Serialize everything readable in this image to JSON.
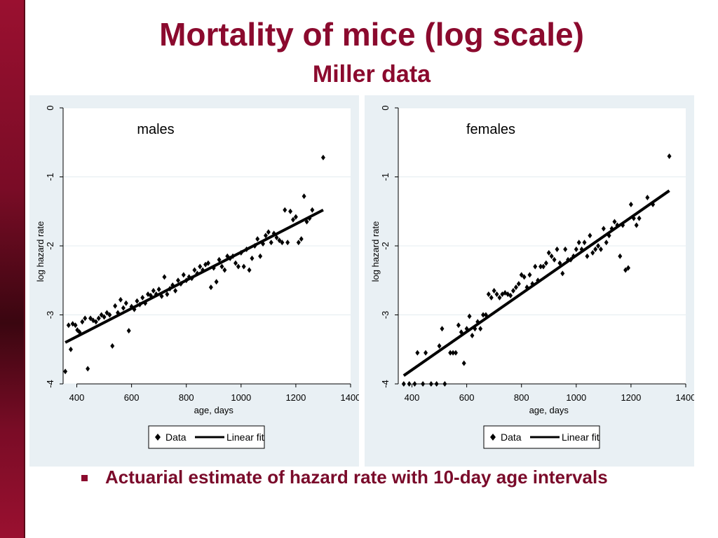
{
  "title": "Mortality of mice (log scale)",
  "subtitle": "Miller data",
  "bullet": "Actuarial estimate of hazard rate with 10-day age intervals",
  "colors": {
    "title": "#8b0a2e",
    "accent_bar": "#8b0a2e",
    "panel_bg": "#e9f0f4"
  },
  "chart_data": [
    {
      "type": "scatter",
      "annotation": "males",
      "xlabel": "age, days",
      "ylabel": "log hazard rate",
      "xlim": [
        350,
        1400
      ],
      "ylim": [
        -4,
        0
      ],
      "xticks": [
        400,
        600,
        800,
        1000,
        1200,
        1400
      ],
      "yticks": [
        0,
        -1,
        -2,
        -3,
        -4
      ],
      "grid": true,
      "legend": {
        "placement": "bottom",
        "entries": [
          "Data",
          "Linear fit"
        ]
      },
      "series": [
        {
          "name": "Data",
          "kind": "scatter",
          "points": [
            [
              358,
              -3.82
            ],
            [
              370,
              -3.15
            ],
            [
              378,
              -3.5
            ],
            [
              385,
              -3.13
            ],
            [
              395,
              -3.15
            ],
            [
              402,
              -3.22
            ],
            [
              410,
              -3.25
            ],
            [
              420,
              -3.1
            ],
            [
              430,
              -3.05
            ],
            [
              440,
              -3.78
            ],
            [
              450,
              -3.05
            ],
            [
              460,
              -3.08
            ],
            [
              470,
              -3.1
            ],
            [
              480,
              -3.05
            ],
            [
              490,
              -3.0
            ],
            [
              500,
              -3.03
            ],
            [
              510,
              -2.97
            ],
            [
              520,
              -3.0
            ],
            [
              530,
              -3.45
            ],
            [
              540,
              -2.87
            ],
            [
              550,
              -2.97
            ],
            [
              560,
              -2.78
            ],
            [
              570,
              -2.9
            ],
            [
              580,
              -2.83
            ],
            [
              590,
              -3.23
            ],
            [
              600,
              -2.88
            ],
            [
              610,
              -2.92
            ],
            [
              620,
              -2.8
            ],
            [
              630,
              -2.85
            ],
            [
              640,
              -2.75
            ],
            [
              650,
              -2.83
            ],
            [
              660,
              -2.7
            ],
            [
              670,
              -2.72
            ],
            [
              680,
              -2.65
            ],
            [
              690,
              -2.7
            ],
            [
              700,
              -2.63
            ],
            [
              710,
              -2.73
            ],
            [
              720,
              -2.45
            ],
            [
              730,
              -2.7
            ],
            [
              740,
              -2.62
            ],
            [
              750,
              -2.57
            ],
            [
              760,
              -2.65
            ],
            [
              770,
              -2.5
            ],
            [
              780,
              -2.55
            ],
            [
              790,
              -2.42
            ],
            [
              800,
              -2.5
            ],
            [
              810,
              -2.45
            ],
            [
              820,
              -2.47
            ],
            [
              830,
              -2.35
            ],
            [
              840,
              -2.4
            ],
            [
              850,
              -2.3
            ],
            [
              860,
              -2.35
            ],
            [
              870,
              -2.27
            ],
            [
              880,
              -2.25
            ],
            [
              890,
              -2.6
            ],
            [
              900,
              -2.32
            ],
            [
              910,
              -2.52
            ],
            [
              920,
              -2.2
            ],
            [
              930,
              -2.3
            ],
            [
              940,
              -2.35
            ],
            [
              950,
              -2.15
            ],
            [
              960,
              -2.18
            ],
            [
              970,
              -2.15
            ],
            [
              980,
              -2.25
            ],
            [
              990,
              -2.3
            ],
            [
              1000,
              -2.1
            ],
            [
              1010,
              -2.3
            ],
            [
              1020,
              -2.05
            ],
            [
              1030,
              -2.35
            ],
            [
              1040,
              -2.18
            ],
            [
              1050,
              -2.0
            ],
            [
              1060,
              -1.9
            ],
            [
              1070,
              -2.15
            ],
            [
              1080,
              -1.97
            ],
            [
              1090,
              -1.85
            ],
            [
              1100,
              -1.8
            ],
            [
              1110,
              -1.95
            ],
            [
              1120,
              -1.82
            ],
            [
              1130,
              -1.88
            ],
            [
              1140,
              -1.92
            ],
            [
              1150,
              -1.95
            ],
            [
              1160,
              -1.48
            ],
            [
              1170,
              -1.95
            ],
            [
              1180,
              -1.5
            ],
            [
              1190,
              -1.62
            ],
            [
              1200,
              -1.58
            ],
            [
              1210,
              -1.95
            ],
            [
              1220,
              -1.9
            ],
            [
              1230,
              -1.28
            ],
            [
              1240,
              -1.65
            ],
            [
              1250,
              -1.6
            ],
            [
              1260,
              -1.48
            ],
            [
              1300,
              -0.72
            ]
          ]
        },
        {
          "name": "Linear fit",
          "kind": "line",
          "points": [
            [
              358,
              -3.4
            ],
            [
              1300,
              -1.48
            ]
          ]
        }
      ]
    },
    {
      "type": "scatter",
      "annotation": "females",
      "xlabel": "age, days",
      "ylabel": "log hazard rate",
      "xlim": [
        350,
        1400
      ],
      "ylim": [
        -4,
        0
      ],
      "xticks": [
        400,
        600,
        800,
        1000,
        1200,
        1400
      ],
      "yticks": [
        0,
        -1,
        -2,
        -3,
        -4
      ],
      "grid": true,
      "legend": {
        "placement": "bottom",
        "entries": [
          "Data",
          "Linear fit"
        ]
      },
      "series": [
        {
          "name": "Data",
          "kind": "scatter",
          "points": [
            [
              370,
              -4.0
            ],
            [
              390,
              -4.0
            ],
            [
              410,
              -4.0
            ],
            [
              420,
              -3.55
            ],
            [
              440,
              -4.0
            ],
            [
              450,
              -3.55
            ],
            [
              470,
              -4.0
            ],
            [
              490,
              -4.0
            ],
            [
              500,
              -3.45
            ],
            [
              510,
              -3.2
            ],
            [
              520,
              -4.0
            ],
            [
              540,
              -3.55
            ],
            [
              550,
              -3.55
            ],
            [
              560,
              -3.55
            ],
            [
              570,
              -3.15
            ],
            [
              580,
              -3.25
            ],
            [
              590,
              -3.7
            ],
            [
              600,
              -3.2
            ],
            [
              610,
              -3.02
            ],
            [
              620,
              -3.3
            ],
            [
              630,
              -3.2
            ],
            [
              640,
              -3.1
            ],
            [
              650,
              -3.2
            ],
            [
              660,
              -3.0
            ],
            [
              670,
              -3.0
            ],
            [
              680,
              -2.7
            ],
            [
              690,
              -2.75
            ],
            [
              700,
              -2.65
            ],
            [
              710,
              -2.7
            ],
            [
              720,
              -2.75
            ],
            [
              730,
              -2.7
            ],
            [
              740,
              -2.68
            ],
            [
              750,
              -2.7
            ],
            [
              760,
              -2.72
            ],
            [
              770,
              -2.65
            ],
            [
              780,
              -2.6
            ],
            [
              790,
              -2.55
            ],
            [
              800,
              -2.42
            ],
            [
              810,
              -2.45
            ],
            [
              820,
              -2.6
            ],
            [
              830,
              -2.42
            ],
            [
              840,
              -2.55
            ],
            [
              850,
              -2.3
            ],
            [
              860,
              -2.5
            ],
            [
              870,
              -2.3
            ],
            [
              880,
              -2.3
            ],
            [
              890,
              -2.25
            ],
            [
              900,
              -2.1
            ],
            [
              910,
              -2.15
            ],
            [
              920,
              -2.2
            ],
            [
              930,
              -2.05
            ],
            [
              940,
              -2.25
            ],
            [
              950,
              -2.4
            ],
            [
              960,
              -2.05
            ],
            [
              970,
              -2.2
            ],
            [
              980,
              -2.2
            ],
            [
              990,
              -2.15
            ],
            [
              1000,
              -2.05
            ],
            [
              1010,
              -1.95
            ],
            [
              1020,
              -2.05
            ],
            [
              1030,
              -1.95
            ],
            [
              1040,
              -2.15
            ],
            [
              1050,
              -1.85
            ],
            [
              1060,
              -2.1
            ],
            [
              1070,
              -2.05
            ],
            [
              1080,
              -2.0
            ],
            [
              1090,
              -2.05
            ],
            [
              1100,
              -1.75
            ],
            [
              1110,
              -1.95
            ],
            [
              1120,
              -1.85
            ],
            [
              1130,
              -1.75
            ],
            [
              1140,
              -1.65
            ],
            [
              1150,
              -1.7
            ],
            [
              1160,
              -2.15
            ],
            [
              1170,
              -1.7
            ],
            [
              1180,
              -2.35
            ],
            [
              1190,
              -2.32
            ],
            [
              1200,
              -1.4
            ],
            [
              1210,
              -1.6
            ],
            [
              1220,
              -1.7
            ],
            [
              1230,
              -1.6
            ],
            [
              1260,
              -1.3
            ],
            [
              1280,
              -1.4
            ],
            [
              1340,
              -0.7
            ]
          ]
        },
        {
          "name": "Linear fit",
          "kind": "line",
          "points": [
            [
              370,
              -3.88
            ],
            [
              1340,
              -1.2
            ]
          ]
        }
      ]
    }
  ]
}
